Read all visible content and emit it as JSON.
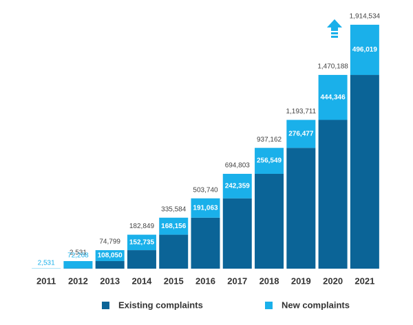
{
  "chart_data": {
    "type": "stacked-bar",
    "categories": [
      "2011",
      "2012",
      "2013",
      "2014",
      "2015",
      "2016",
      "2017",
      "2018",
      "2019",
      "2020",
      "2021"
    ],
    "series": [
      {
        "name": "Existing complaints",
        "color": "#0b6497",
        "values": [
          0,
          2531,
          74799,
          182849,
          335584,
          503740,
          694803,
          937162,
          1193711,
          1470188,
          1914534
        ],
        "value_labels": [
          null,
          "2,531",
          "74,799",
          "182,849",
          "335,584",
          "503,740",
          "694,803",
          "937,162",
          "1,193,711",
          "1,470,188",
          "1,914,534"
        ]
      },
      {
        "name": "New complaints",
        "color": "#1ab0ea",
        "values": [
          2531,
          72268,
          108050,
          152735,
          168156,
          191063,
          242359,
          256549,
          276477,
          444346,
          496019
        ],
        "value_labels": [
          "2,531",
          "72,268",
          "108,050",
          "152,735",
          "168,156",
          "191,063",
          "242,359",
          "256,549",
          "276,477",
          "444,346",
          "496,019"
        ]
      }
    ]
  }
}
